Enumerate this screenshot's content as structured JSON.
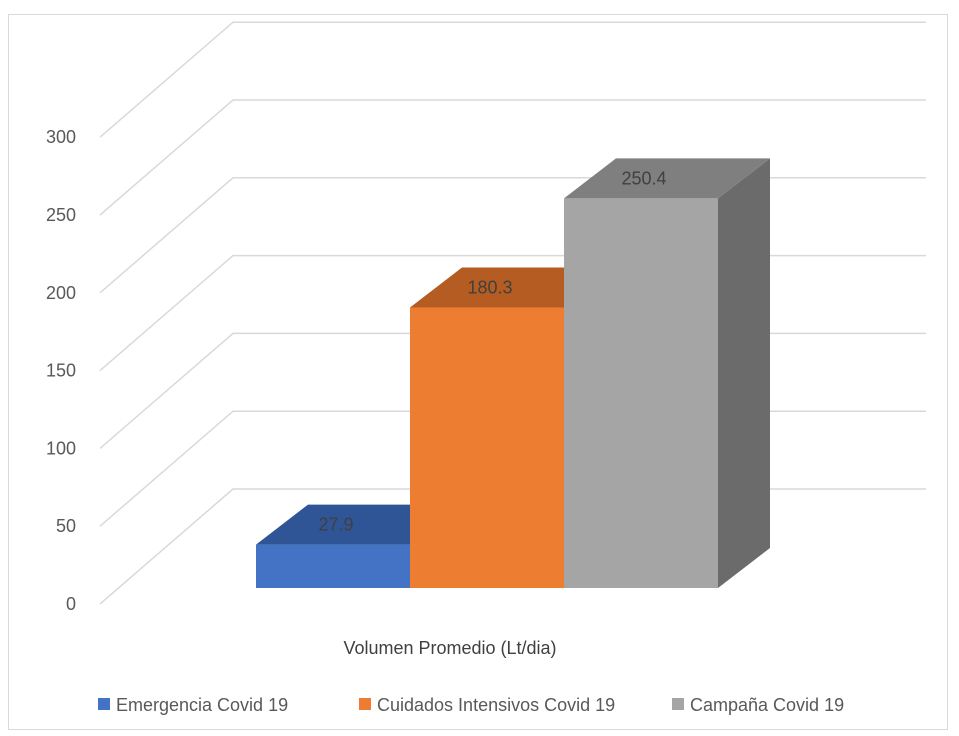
{
  "chart_data": {
    "type": "bar",
    "style": "3d-clustered-column",
    "categories": [
      "Volumen Promedio (Lt/dia)"
    ],
    "xlabel": "Volumen Promedio (Lt/dia)",
    "ylabel": "",
    "title": "",
    "ylim": [
      0,
      300
    ],
    "yticks": [
      0,
      50,
      100,
      150,
      200,
      250,
      300
    ],
    "grid": true,
    "legend_position": "bottom",
    "series": [
      {
        "name": "Emergencia Covid 19",
        "values": [
          27.9
        ],
        "label": "27.9",
        "color": "#4472c4",
        "top_color": "#2f5597"
      },
      {
        "name": "Cuidados Intensivos Covid 19",
        "values": [
          180.3
        ],
        "label": "180.3",
        "color": "#ed7d31",
        "top_color": "#b45c22"
      },
      {
        "name": "Campaña Covid 19",
        "values": [
          250.4
        ],
        "label": "250.4",
        "color": "#a5a5a5",
        "top_color": "#7f7f7f",
        "side_color": "#6b6b6b"
      }
    ]
  }
}
